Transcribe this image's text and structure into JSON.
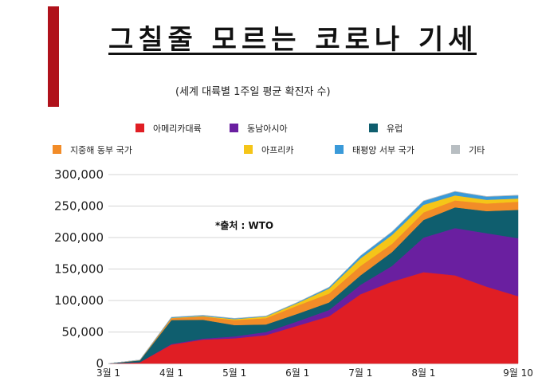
{
  "header": {
    "title": "그칠줄 모르는 코로나 기세",
    "subtitle": "(세계 대륙별 1주일 평균 확진자 수)",
    "source": "*출처 :  WTO"
  },
  "chart_data": {
    "type": "area",
    "stacked": true,
    "x": [
      "3월 1",
      "3월 15",
      "4월 1",
      "4월 15",
      "5월 1",
      "5월 15",
      "6월 1",
      "6월 15",
      "7월 1",
      "7월 15",
      "8월 1",
      "8월 15",
      "9월 1",
      "9월 10"
    ],
    "x_ticks": [
      "3월 1",
      "4월 1",
      "5월 1",
      "6월 1",
      "7월 1",
      "8월  1",
      "9월 10"
    ],
    "ylim": [
      0,
      300000
    ],
    "y_ticks": [
      0,
      50000,
      100000,
      150000,
      200000,
      250000,
      300000
    ],
    "y_tick_labels": [
      "0",
      "50,000",
      "100,000",
      "150,000",
      "200,000",
      "250,000",
      "300,000"
    ],
    "grid": true,
    "legend_position": "top",
    "series": [
      {
        "name": "아메리카대륙",
        "color": "#e01e24",
        "values": [
          0,
          2000,
          30000,
          38000,
          40000,
          45000,
          60000,
          75000,
          110000,
          130000,
          145000,
          140000,
          122000,
          107000
        ]
      },
      {
        "name": "동남아시아",
        "color": "#6a1fa0",
        "values": [
          0,
          0,
          1000,
          1500,
          3000,
          5000,
          7000,
          10000,
          15000,
          25000,
          55000,
          75000,
          85000,
          92000
        ]
      },
      {
        "name": "유럽",
        "color": "#0f5e6e",
        "values": [
          0,
          3000,
          38000,
          30000,
          18000,
          12000,
          12000,
          12000,
          15000,
          22000,
          28000,
          33000,
          35000,
          45000
        ]
      },
      {
        "name": "지중해 동부 국가",
        "color": "#f28c28",
        "values": [
          0,
          500,
          3000,
          5000,
          8000,
          10000,
          13000,
          14000,
          15000,
          13000,
          12000,
          11000,
          12000,
          13000
        ]
      },
      {
        "name": "아프리카",
        "color": "#f5c518",
        "values": [
          0,
          0,
          500,
          800,
          1500,
          2500,
          4000,
          8000,
          12000,
          14000,
          12000,
          8000,
          6000,
          5000
        ]
      },
      {
        "name": "태평양 서부 국가",
        "color": "#3a9ad9",
        "values": [
          0,
          200,
          1000,
          1200,
          1000,
          800,
          1000,
          2000,
          4000,
          5000,
          6000,
          6000,
          5000,
          5000
        ]
      },
      {
        "name": "기타",
        "color": "#b8bec2",
        "values": [
          0,
          0,
          200,
          300,
          300,
          300,
          300,
          300,
          300,
          500,
          500,
          500,
          500,
          500
        ]
      }
    ]
  }
}
